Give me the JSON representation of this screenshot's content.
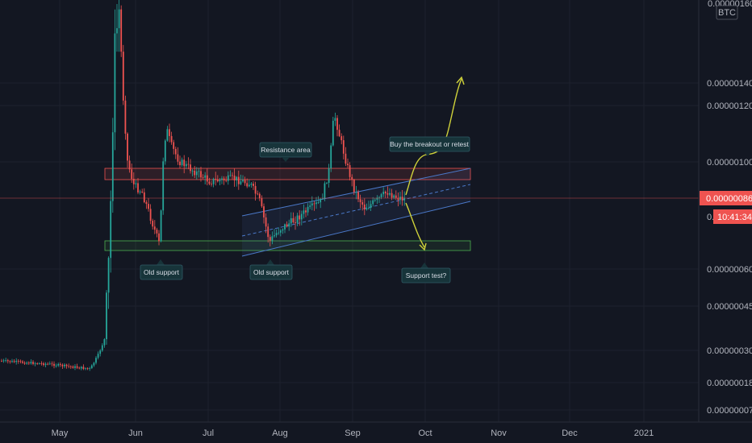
{
  "chart_data": {
    "type": "candlestick",
    "title": "",
    "xlabel": "",
    "ylabel": "",
    "ylim": [
      0.0,
      1.6e-06
    ],
    "x_ticks": [
      "May",
      "Jun",
      "Jul",
      "Aug",
      "Sep",
      "Oct",
      "Nov",
      "Dec",
      "2021"
    ],
    "y_ticks": [
      {
        "value": 1.4e-06,
        "label": "0.00000140"
      },
      {
        "value": 1.2e-06,
        "label": "0.00000120"
      },
      {
        "value": 1e-06,
        "label": "0.00000100"
      },
      {
        "value": 6e-07,
        "label": "0.00000060"
      },
      {
        "value": 4.5e-07,
        "label": "0.00000045"
      },
      {
        "value": 3e-07,
        "label": "0.00000030"
      },
      {
        "value": 1.8e-07,
        "label": "0.00000018"
      },
      {
        "value": 7e-08,
        "label": "0.00000007"
      }
    ],
    "top_partial_label": "0.00000160",
    "quote_currency": "BTC",
    "last_price": {
      "value": 8.6e-07,
      "label": "0.00000086"
    },
    "countdown": "10:41:34",
    "partial_label": "0.",
    "annotations": {
      "resistance": "Resistance area",
      "old_support_1": "Old support",
      "old_support_2": "Old support",
      "breakout": "Buy the breakout or retest",
      "support_test": "Support test?"
    },
    "colors": {
      "background": "#131722",
      "up": "#26a69a",
      "down": "#ef5350",
      "grid": "#1e222d",
      "price_line": "#ef5350",
      "arrow": "#cfd23a",
      "channel": "#4a78c8",
      "support_zone": "#4caf50",
      "resistance_zone": "#ef5350"
    }
  }
}
